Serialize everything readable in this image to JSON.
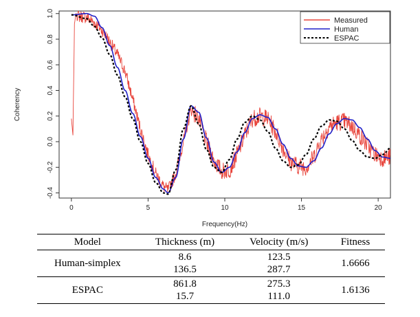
{
  "chart_data": {
    "type": "line",
    "title": "",
    "xlabel": "Frequency(Hz)",
    "ylabel": "Coherency",
    "xlim": [
      -0.8,
      20.8
    ],
    "ylim": [
      -0.44,
      1.02
    ],
    "xticks": [
      0,
      5,
      10,
      15,
      20
    ],
    "xtick_labels": [
      "0",
      "5",
      "10",
      "15",
      "20"
    ],
    "yticks": [
      -0.4,
      -0.2,
      0.0,
      0.2,
      0.4,
      0.6,
      0.8,
      1.0
    ],
    "ytick_labels": [
      "-0.4",
      "-0.2",
      "0.0",
      "0.2",
      "0.4",
      "0.6",
      "0.8",
      "1.0"
    ],
    "grid": false,
    "legend_position": "top-right",
    "series": [
      {
        "name": "Measured",
        "color": "#e8453c",
        "style": "noisy-line",
        "x": [
          0.0,
          0.1,
          0.2,
          0.3,
          0.5,
          1.0,
          1.5,
          2.0,
          2.5,
          3.0,
          3.5,
          4.0,
          4.5,
          5.0,
          5.5,
          6.0,
          6.3,
          6.8,
          7.3,
          7.8,
          8.3,
          8.8,
          9.3,
          9.8,
          10.3,
          10.8,
          11.3,
          11.8,
          12.3,
          12.8,
          13.3,
          13.8,
          14.3,
          14.8,
          15.3,
          15.8,
          16.3,
          16.8,
          17.3,
          17.8,
          18.3,
          18.8,
          19.3,
          19.8,
          20.3,
          20.8
        ],
        "y": [
          0.18,
          0.05,
          0.92,
          1.0,
          0.98,
          0.97,
          0.93,
          0.87,
          0.78,
          0.68,
          0.55,
          0.33,
          0.1,
          -0.1,
          -0.25,
          -0.35,
          -0.38,
          -0.25,
          0.0,
          0.25,
          0.18,
          0.0,
          -0.15,
          -0.23,
          -0.22,
          -0.1,
          0.05,
          0.18,
          0.2,
          0.18,
          0.08,
          -0.05,
          -0.16,
          -0.19,
          -0.2,
          -0.12,
          0.02,
          0.12,
          0.15,
          0.16,
          0.12,
          0.05,
          -0.03,
          -0.1,
          -0.13,
          -0.12
        ]
      },
      {
        "name": "Human",
        "color": "#2020c8",
        "style": "solid",
        "x": [
          0.0,
          1.0,
          1.5,
          2.0,
          2.5,
          3.0,
          3.5,
          4.0,
          4.5,
          5.0,
          5.5,
          6.0,
          6.3,
          6.8,
          7.3,
          7.8,
          8.3,
          8.8,
          9.3,
          9.8,
          10.3,
          10.8,
          11.3,
          11.8,
          12.3,
          12.8,
          13.3,
          13.8,
          14.3,
          14.8,
          15.3,
          15.8,
          16.3,
          16.8,
          17.3,
          17.8,
          18.3,
          18.8,
          19.3,
          19.8,
          20.3,
          20.8
        ],
        "y": [
          0.99,
          1.0,
          0.98,
          0.89,
          0.75,
          0.58,
          0.4,
          0.22,
          0.04,
          -0.13,
          -0.28,
          -0.37,
          -0.4,
          -0.28,
          0.02,
          0.28,
          0.23,
          0.03,
          -0.16,
          -0.24,
          -0.2,
          -0.08,
          0.07,
          0.18,
          0.21,
          0.19,
          0.1,
          -0.02,
          -0.13,
          -0.19,
          -0.2,
          -0.15,
          -0.05,
          0.06,
          0.14,
          0.18,
          0.17,
          0.11,
          0.02,
          -0.07,
          -0.12,
          -0.13
        ]
      },
      {
        "name": "ESPAC",
        "color": "#000000",
        "style": "dotted",
        "x": [
          0.0,
          1.0,
          1.5,
          2.0,
          2.5,
          3.0,
          3.5,
          4.0,
          4.5,
          5.0,
          5.5,
          6.0,
          6.3,
          6.8,
          7.3,
          7.8,
          8.3,
          8.8,
          9.3,
          9.8,
          10.3,
          10.8,
          11.3,
          11.8,
          12.3,
          12.8,
          13.3,
          13.8,
          14.3,
          14.8,
          15.3,
          15.8,
          16.3,
          16.8,
          17.3,
          17.8,
          18.3,
          18.8,
          19.3,
          19.8,
          20.3,
          20.8
        ],
        "y": [
          0.99,
          0.96,
          0.9,
          0.81,
          0.68,
          0.52,
          0.35,
          0.18,
          0.0,
          -0.17,
          -0.32,
          -0.4,
          -0.41,
          -0.22,
          0.1,
          0.28,
          0.14,
          -0.06,
          -0.2,
          -0.24,
          -0.14,
          0.02,
          0.15,
          0.2,
          0.17,
          0.08,
          -0.05,
          -0.15,
          -0.2,
          -0.18,
          -0.1,
          0.02,
          0.12,
          0.17,
          0.16,
          0.1,
          0.01,
          -0.07,
          -0.12,
          -0.13,
          -0.1,
          -0.05
        ]
      }
    ]
  },
  "legend": {
    "items": [
      "Measured",
      "Human",
      "ESPAC"
    ]
  },
  "table": {
    "headers": [
      "Model",
      "Thickness (m)",
      "Velocity (m/s)",
      "Fitness"
    ],
    "rows": [
      {
        "model": "Human-simplex",
        "thickness": [
          "8.6",
          "136.5"
        ],
        "velocity": [
          "123.5",
          "287.7"
        ],
        "fitness": "1.6666"
      },
      {
        "model": "ESPAC",
        "thickness": [
          "861.8",
          "15.7"
        ],
        "velocity": [
          "275.3",
          "111.0"
        ],
        "fitness": "1.6136"
      }
    ]
  }
}
